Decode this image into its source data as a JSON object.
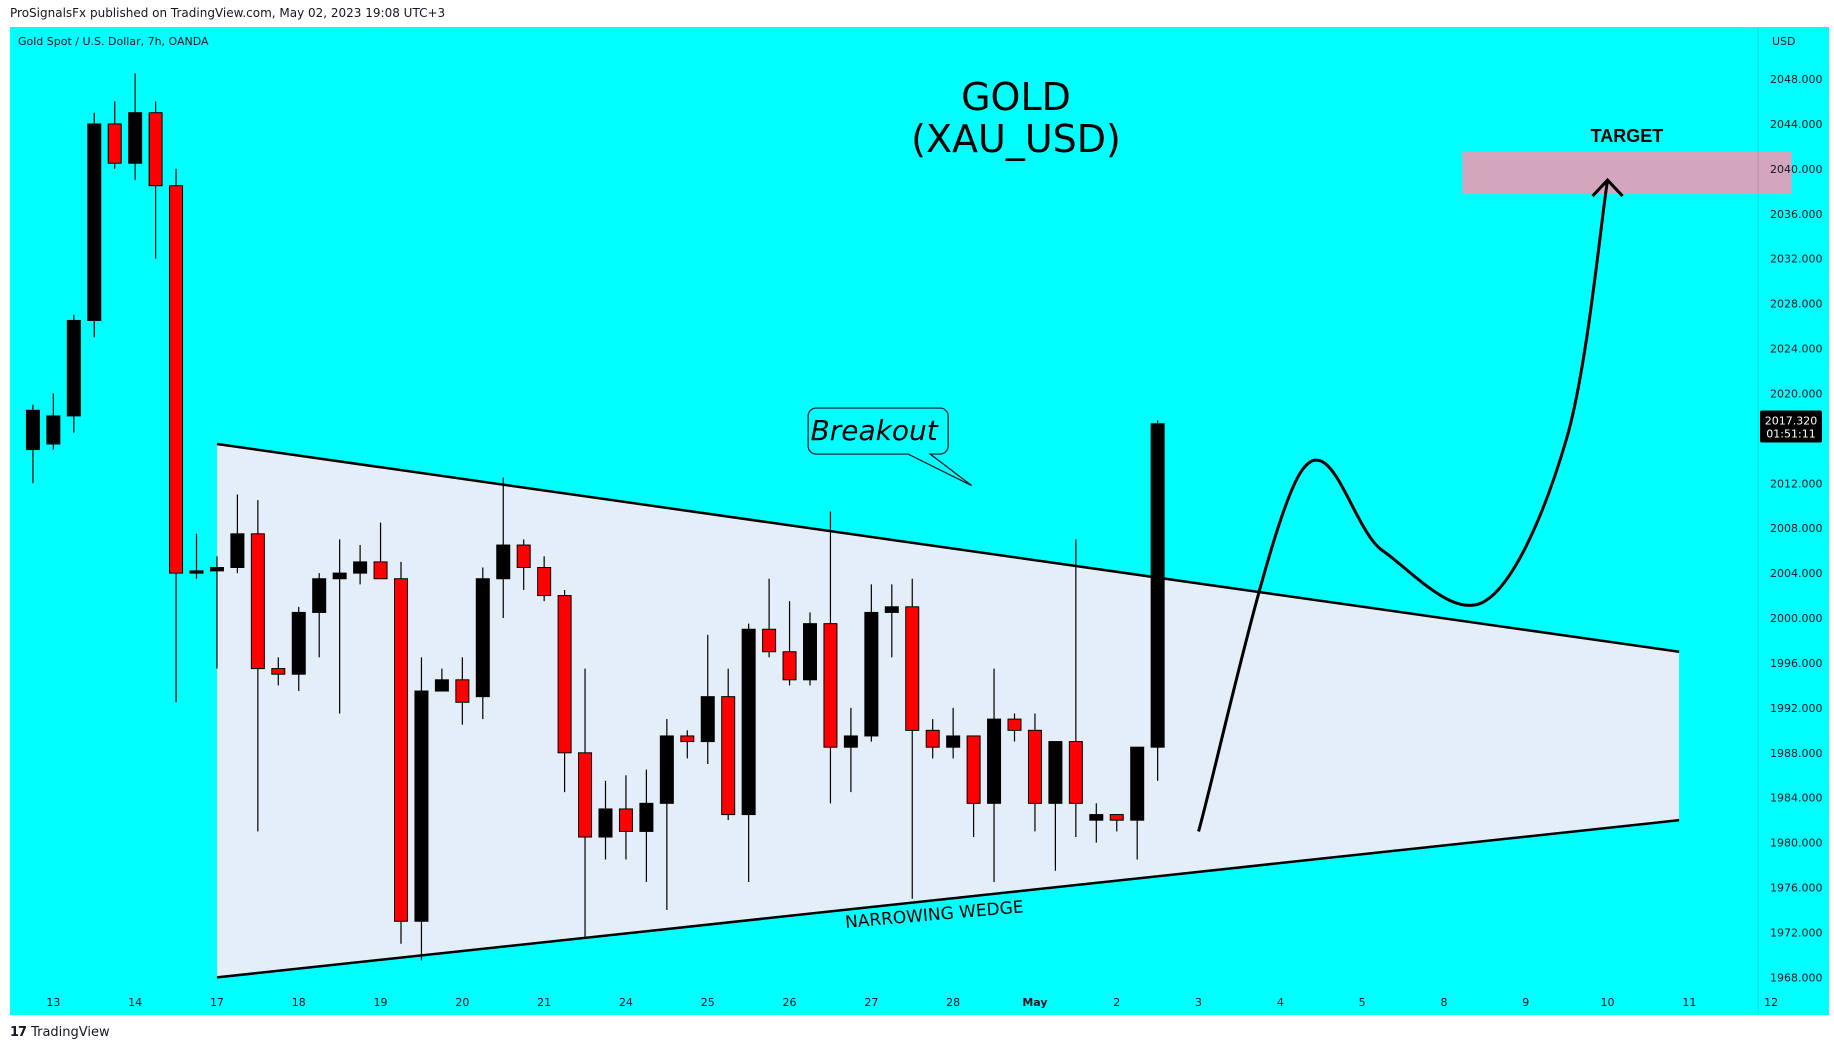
{
  "header": {
    "published": "ProSignalsFx published on TradingView.com, May 02, 2023 19:08 UTC+3"
  },
  "footer": {
    "brand": "TradingView",
    "logo_glyph": "17"
  },
  "chart_data": {
    "type": "candlestick",
    "symbol_line": "Gold Spot / U.S. Dollar, 7h, OANDA",
    "title_line1": "GOLD",
    "title_line2": "(XAU_USD)",
    "currency_label": "USD",
    "y_range": [
      1966,
      2052
    ],
    "y_ticks": [
      "2048.000",
      "2044.000",
      "2040.000",
      "2036.000",
      "2032.000",
      "2028.000",
      "2024.000",
      "2020.000",
      "2016.000",
      "2012.000",
      "2008.000",
      "2004.000",
      "2000.000",
      "1996.000",
      "1992.000",
      "1988.000",
      "1984.000",
      "1980.000",
      "1976.000",
      "1972.000",
      "1968.000"
    ],
    "x_labels": [
      {
        "label": "13",
        "slot": 1
      },
      {
        "label": "14",
        "slot": 5
      },
      {
        "label": "17",
        "slot": 9
      },
      {
        "label": "18",
        "slot": 13
      },
      {
        "label": "19",
        "slot": 17
      },
      {
        "label": "20",
        "slot": 21
      },
      {
        "label": "21",
        "slot": 25
      },
      {
        "label": "24",
        "slot": 29
      },
      {
        "label": "25",
        "slot": 33
      },
      {
        "label": "26",
        "slot": 37
      },
      {
        "label": "27",
        "slot": 41
      },
      {
        "label": "28",
        "slot": 45
      },
      {
        "label": "May",
        "slot": 49,
        "bold": true
      },
      {
        "label": "2",
        "slot": 53
      },
      {
        "label": "3",
        "slot": 57
      },
      {
        "label": "4",
        "slot": 61
      },
      {
        "label": "5",
        "slot": 65
      },
      {
        "label": "8",
        "slot": 69
      },
      {
        "label": "9",
        "slot": 73
      },
      {
        "label": "10",
        "slot": 77
      },
      {
        "label": "11",
        "slot": 81
      },
      {
        "label": "12",
        "slot": 85
      }
    ],
    "candles": [
      {
        "o": 2015.0,
        "h": 2019.0,
        "l": 2012.0,
        "c": 2018.5
      },
      {
        "o": 2015.5,
        "h": 2020.0,
        "l": 2015.0,
        "c": 2018.0
      },
      {
        "o": 2018.0,
        "h": 2027.0,
        "l": 2016.5,
        "c": 2026.5
      },
      {
        "o": 2026.5,
        "h": 2045.0,
        "l": 2025.0,
        "c": 2044.0
      },
      {
        "o": 2044.0,
        "h": 2046.0,
        "l": 2040.0,
        "c": 2040.5
      },
      {
        "o": 2040.5,
        "h": 2048.5,
        "l": 2039.0,
        "c": 2045.0
      },
      {
        "o": 2045.0,
        "h": 2046.0,
        "l": 2032.0,
        "c": 2038.5
      },
      {
        "o": 2038.5,
        "h": 2040.0,
        "l": 1992.5,
        "c": 2004.0
      },
      {
        "o": 2004.0,
        "h": 2007.5,
        "l": 2003.5,
        "c": 2004.2
      },
      {
        "o": 2004.2,
        "h": 2005.5,
        "l": 1995.5,
        "c": 2004.5
      },
      {
        "o": 2004.5,
        "h": 2011.0,
        "l": 2004.0,
        "c": 2007.5
      },
      {
        "o": 2007.5,
        "h": 2010.5,
        "l": 1981.0,
        "c": 1995.5
      },
      {
        "o": 1995.5,
        "h": 1996.5,
        "l": 1994.0,
        "c": 1995.0
      },
      {
        "o": 1995.0,
        "h": 2001.0,
        "l": 1993.5,
        "c": 2000.5
      },
      {
        "o": 2000.5,
        "h": 2004.0,
        "l": 1996.5,
        "c": 2003.5
      },
      {
        "o": 2003.5,
        "h": 2007.0,
        "l": 1991.5,
        "c": 2004.0
      },
      {
        "o": 2004.0,
        "h": 2006.5,
        "l": 2003.0,
        "c": 2005.0
      },
      {
        "o": 2005.0,
        "h": 2008.5,
        "l": 2003.5,
        "c": 2003.5
      },
      {
        "o": 2003.5,
        "h": 2005.0,
        "l": 1971.0,
        "c": 1973.0
      },
      {
        "o": 1973.0,
        "h": 1996.5,
        "l": 1969.5,
        "c": 1993.5
      },
      {
        "o": 1993.5,
        "h": 1995.5,
        "l": 1993.5,
        "c": 1994.5
      },
      {
        "o": 1994.5,
        "h": 1996.5,
        "l": 1990.5,
        "c": 1992.5
      },
      {
        "o": 1993.0,
        "h": 2004.5,
        "l": 1991.0,
        "c": 2003.5
      },
      {
        "o": 2003.5,
        "h": 2012.5,
        "l": 2000.0,
        "c": 2006.5
      },
      {
        "o": 2006.5,
        "h": 2007.0,
        "l": 2002.5,
        "c": 2004.5
      },
      {
        "o": 2004.5,
        "h": 2005.5,
        "l": 2001.5,
        "c": 2002.0
      },
      {
        "o": 2002.0,
        "h": 2002.5,
        "l": 1984.5,
        "c": 1988.0
      },
      {
        "o": 1988.0,
        "h": 1995.5,
        "l": 1971.5,
        "c": 1980.5
      },
      {
        "o": 1980.5,
        "h": 1985.5,
        "l": 1978.5,
        "c": 1983.0
      },
      {
        "o": 1983.0,
        "h": 1986.0,
        "l": 1978.5,
        "c": 1981.0
      },
      {
        "o": 1981.0,
        "h": 1986.5,
        "l": 1976.5,
        "c": 1983.5
      },
      {
        "o": 1983.5,
        "h": 1991.0,
        "l": 1974.0,
        "c": 1989.5
      },
      {
        "o": 1989.5,
        "h": 1990.0,
        "l": 1987.5,
        "c": 1989.0
      },
      {
        "o": 1989.0,
        "h": 1998.5,
        "l": 1987.0,
        "c": 1993.0
      },
      {
        "o": 1993.0,
        "h": 1995.5,
        "l": 1982.0,
        "c": 1982.5
      },
      {
        "o": 1982.5,
        "h": 1999.5,
        "l": 1976.5,
        "c": 1999.0
      },
      {
        "o": 1999.0,
        "h": 2003.5,
        "l": 1996.5,
        "c": 1997.0
      },
      {
        "o": 1997.0,
        "h": 2001.5,
        "l": 1994.0,
        "c": 1994.5
      },
      {
        "o": 1994.5,
        "h": 2000.5,
        "l": 1994.0,
        "c": 1999.5
      },
      {
        "o": 1999.5,
        "h": 2009.5,
        "l": 1983.5,
        "c": 1988.5
      },
      {
        "o": 1988.5,
        "h": 1992.0,
        "l": 1984.5,
        "c": 1989.5
      },
      {
        "o": 1989.5,
        "h": 2003.0,
        "l": 1989.0,
        "c": 2000.5
      },
      {
        "o": 2000.5,
        "h": 2003.0,
        "l": 1996.5,
        "c": 2001.0
      },
      {
        "o": 2001.0,
        "h": 2003.5,
        "l": 1975.0,
        "c": 1990.0
      },
      {
        "o": 1990.0,
        "h": 1991.0,
        "l": 1987.5,
        "c": 1988.5
      },
      {
        "o": 1988.5,
        "h": 1992.0,
        "l": 1987.5,
        "c": 1989.5
      },
      {
        "o": 1989.5,
        "h": 1989.5,
        "l": 1980.5,
        "c": 1983.5
      },
      {
        "o": 1983.5,
        "h": 1995.5,
        "l": 1976.5,
        "c": 1991.0
      },
      {
        "o": 1991.0,
        "h": 1991.5,
        "l": 1989.0,
        "c": 1990.0
      },
      {
        "o": 1990.0,
        "h": 1991.5,
        "l": 1981.0,
        "c": 1983.5
      },
      {
        "o": 1983.5,
        "h": 1989.0,
        "l": 1977.5,
        "c": 1989.0
      },
      {
        "o": 1989.0,
        "h": 2007.0,
        "l": 1980.5,
        "c": 1983.5
      },
      {
        "o": 1982.0,
        "h": 1983.5,
        "l": 1980.0,
        "c": 1982.5
      },
      {
        "o": 1982.5,
        "h": 1982.5,
        "l": 1981.0,
        "c": 1982.0
      },
      {
        "o": 1982.0,
        "h": 1988.5,
        "l": 1978.5,
        "c": 1988.5
      },
      {
        "o": 1988.5,
        "h": 2017.6,
        "l": 1985.5,
        "c": 2017.3
      }
    ],
    "last_price": {
      "value": "2017.320",
      "countdown": "01:51:11"
    },
    "wedge": {
      "upper": [
        [
          9,
          2015.5
        ],
        [
          80.5,
          1997.0
        ]
      ],
      "lower": [
        [
          9,
          1968.0
        ],
        [
          80.5,
          1982.0
        ]
      ],
      "label": "NARROWING WEDGE"
    },
    "annotations": {
      "breakout_label": "Breakout",
      "target_label": "TARGET",
      "target_zone": {
        "x_from": 69.9,
        "x_to": 86,
        "y_from": 2037.8,
        "y_to": 2041.5
      },
      "projection_path": [
        [
          57,
          1981
        ],
        [
          62,
          2013
        ],
        [
          66,
          2006
        ],
        [
          71,
          2001.5
        ],
        [
          75,
          2016
        ],
        [
          77,
          2039
        ]
      ]
    },
    "colors": {
      "background": "#00ffff",
      "bull": "#000000",
      "bear": "#ff0000",
      "wedge_fill": "#e3eef8",
      "target_fill": "#d4a6be",
      "text": "#131722"
    }
  }
}
